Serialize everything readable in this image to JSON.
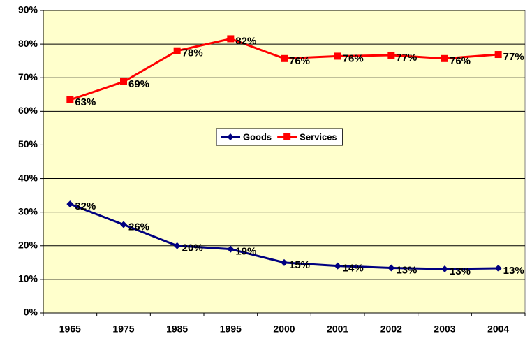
{
  "chart_data": {
    "type": "line",
    "categories": [
      "1965",
      "1975",
      "1985",
      "1995",
      "2000",
      "2001",
      "2002",
      "2003",
      "2004"
    ],
    "series": [
      {
        "name": "Goods",
        "color": "#000080",
        "marker": "diamond",
        "values": [
          32.4,
          26.3,
          20,
          19,
          15,
          14,
          13.4,
          13.1,
          13.3
        ],
        "value_labels": [
          "32%",
          "26%",
          "20%",
          "19%",
          "15%",
          "14%",
          "13%",
          "13%",
          "13%"
        ]
      },
      {
        "name": "Services",
        "color": "#ff0000",
        "marker": "square",
        "values": [
          63.4,
          68.8,
          78,
          81.6,
          75.7,
          76.4,
          76.7,
          75.7,
          76.9
        ],
        "value_labels": [
          "63%",
          "69%",
          "78%",
          "82%",
          "76%",
          "76%",
          "77%",
          "76%",
          "77%"
        ]
      }
    ],
    "ylim": [
      0,
      90
    ],
    "yticks": [
      {
        "value": 0,
        "label": "0%"
      },
      {
        "value": 10,
        "label": "10%"
      },
      {
        "value": 20,
        "label": "20%"
      },
      {
        "value": 30,
        "label": "30%"
      },
      {
        "value": 40,
        "label": "40%"
      },
      {
        "value": 50,
        "label": "50%"
      },
      {
        "value": 60,
        "label": "60%"
      },
      {
        "value": 70,
        "label": "70%"
      },
      {
        "value": 80,
        "label": "80%"
      },
      {
        "value": 90,
        "label": "90%"
      }
    ],
    "grid": true,
    "legend": "center",
    "plot_background": "#ffffcc"
  }
}
